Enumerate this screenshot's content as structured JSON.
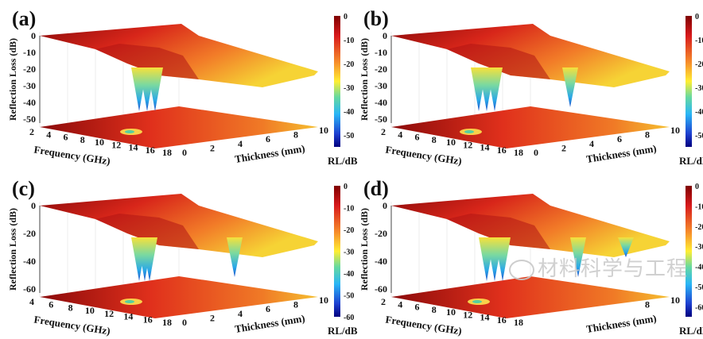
{
  "chart_data": [
    {
      "panel_label": "(a)",
      "type": "surface3d",
      "xlabel": "Frequency (GHz)",
      "ylabel": "Thickness (mm)",
      "zlabel": "Reflection Loss (dB)",
      "x_ticks": [
        "2",
        "4",
        "6",
        "8",
        "10",
        "12",
        "14",
        "16",
        "18"
      ],
      "y_ticks": [
        "0",
        "2",
        "4",
        "6",
        "8",
        "10"
      ],
      "z_ticks": [
        "0",
        "-10",
        "-20",
        "-30",
        "-40",
        "-50"
      ],
      "zlim": [
        -55,
        0
      ],
      "colorbar": {
        "label": "RL/dB",
        "range": [
          -55,
          0
        ],
        "ticks": [
          "0",
          "-10",
          "-20",
          "-30",
          "-40",
          "-50"
        ]
      },
      "min_rl_approx": -50,
      "projection": "contour on floor"
    },
    {
      "panel_label": "(b)",
      "type": "surface3d",
      "xlabel": "Frequency (GHz)",
      "ylabel": "Thickness (mm)",
      "zlabel": "Reflection Loss (dB)",
      "x_ticks": [
        "2",
        "4",
        "6",
        "8",
        "10",
        "12",
        "14",
        "16",
        "18"
      ],
      "y_ticks": [
        "0",
        "2",
        "4",
        "6",
        "8",
        "10"
      ],
      "z_ticks": [
        "0",
        "-10",
        "-20",
        "-30",
        "-40",
        "-50"
      ],
      "zlim": [
        -55,
        0
      ],
      "colorbar": {
        "label": "RL/dB",
        "range": [
          -55,
          0
        ],
        "ticks": [
          "0",
          "-10",
          "-20",
          "-30",
          "-40",
          "-50"
        ]
      },
      "min_rl_approx": -52,
      "projection": "contour on floor"
    },
    {
      "panel_label": "(c)",
      "type": "surface3d",
      "xlabel": "Frequency (GHz)",
      "ylabel": "Thickness (mm)",
      "zlabel": "Reflection Loss (dB)",
      "x_ticks": [
        "4",
        "6",
        "8",
        "10",
        "12",
        "14",
        "16",
        "18"
      ],
      "y_ticks": [
        "0",
        "2",
        "4",
        "6",
        "8",
        "10"
      ],
      "z_ticks": [
        "0",
        "-20",
        "-40",
        "-60"
      ],
      "zlim": [
        -60,
        0
      ],
      "colorbar": {
        "label": "RL/dB",
        "range": [
          -60,
          0
        ],
        "ticks": [
          "0",
          "-10",
          "-20",
          "-30",
          "-40",
          "-50",
          "-60"
        ]
      },
      "min_rl_approx": -60,
      "projection": "contour on floor"
    },
    {
      "panel_label": "(d)",
      "type": "surface3d",
      "xlabel": "Frequency (GHz)",
      "ylabel": "Thickness (mm)",
      "zlabel": "Reflection Loss (dB)",
      "x_ticks": [
        "2",
        "4",
        "6",
        "8",
        "10",
        "12",
        "14",
        "16",
        "18"
      ],
      "y_ticks": [
        "8",
        "10"
      ],
      "z_ticks": [
        "0",
        "-20",
        "-40",
        "-60"
      ],
      "zlim": [
        -65,
        0
      ],
      "colorbar": {
        "label": "RL/dB",
        "range": [
          -65,
          0
        ],
        "ticks": [
          "0",
          "-10",
          "-20",
          "-30",
          "-40",
          "-50",
          "-60"
        ]
      },
      "min_rl_approx": -62,
      "projection": "contour on floor"
    }
  ],
  "colormap": [
    "#7f0000",
    "#d7191c",
    "#f46d43",
    "#fdae61",
    "#ffff33",
    "#66d9a0",
    "#29b6f6",
    "#1e5bd6",
    "#00007f"
  ],
  "watermark": {
    "text": "材料科学与工程",
    "icon": "wechat-icon"
  }
}
